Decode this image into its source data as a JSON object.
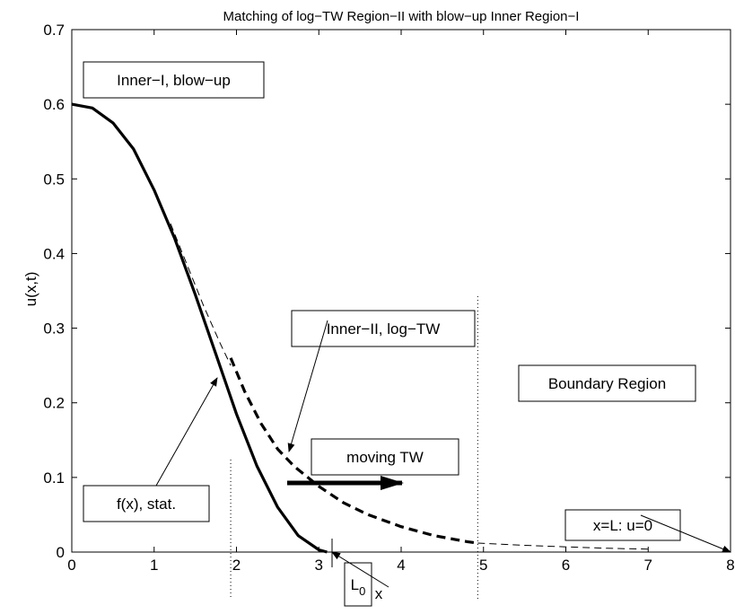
{
  "chart_data": {
    "type": "line",
    "title": "Matching of log−TW Region−II with blow−up Inner Region−I",
    "xlabel": "x",
    "ylabel": "u(x,t)",
    "xlim": [
      0,
      8
    ],
    "ylim": [
      0,
      0.7
    ],
    "xticks": [
      "0",
      "1",
      "2",
      "3",
      "4",
      "5",
      "6",
      "7",
      "8"
    ],
    "yticks": [
      "0",
      "0.1",
      "0.2",
      "0.3",
      "0.4",
      "0.5",
      "0.6",
      "0.7"
    ],
    "grid": false,
    "series": [
      {
        "style": "solid-thick",
        "x": [
          0,
          0.25,
          0.5,
          0.75,
          1.0,
          1.25,
          1.5,
          1.75,
          2.0,
          2.25,
          2.5,
          2.75,
          3.0,
          3.1
        ],
        "y": [
          0.6,
          0.595,
          0.575,
          0.54,
          0.485,
          0.42,
          0.345,
          0.265,
          0.185,
          0.115,
          0.06,
          0.022,
          0.003,
          0.0
        ]
      },
      {
        "style": "dashed-thin",
        "x": [
          1.2,
          1.4,
          1.6,
          1.8,
          1.93
        ],
        "y": [
          0.44,
          0.385,
          0.33,
          0.28,
          0.25
        ]
      },
      {
        "style": "dashed-thick",
        "x": [
          1.93,
          2.1,
          2.3,
          2.5,
          2.7,
          3.0,
          3.3,
          3.6,
          4.0,
          4.4,
          4.8,
          4.93
        ],
        "y": [
          0.26,
          0.215,
          0.172,
          0.138,
          0.115,
          0.088,
          0.066,
          0.05,
          0.034,
          0.022,
          0.014,
          0.012
        ]
      },
      {
        "style": "dashed-thin",
        "x": [
          4.93,
          5.5,
          6.0,
          6.5,
          7.0
        ],
        "y": [
          0.012,
          0.009,
          0.007,
          0.005,
          0.004
        ]
      }
    ],
    "vertical_lines": [
      1.93,
      4.93
    ],
    "annotations": [
      {
        "text": "Inner−I, blow−up"
      },
      {
        "text": "Inner−II, log−TW"
      },
      {
        "text": "Boundary Region"
      },
      {
        "text": "moving TW"
      },
      {
        "text": "f(x), stat."
      },
      {
        "text": "x=L: u=0"
      },
      {
        "text": "L",
        "subscript": "0"
      }
    ]
  }
}
